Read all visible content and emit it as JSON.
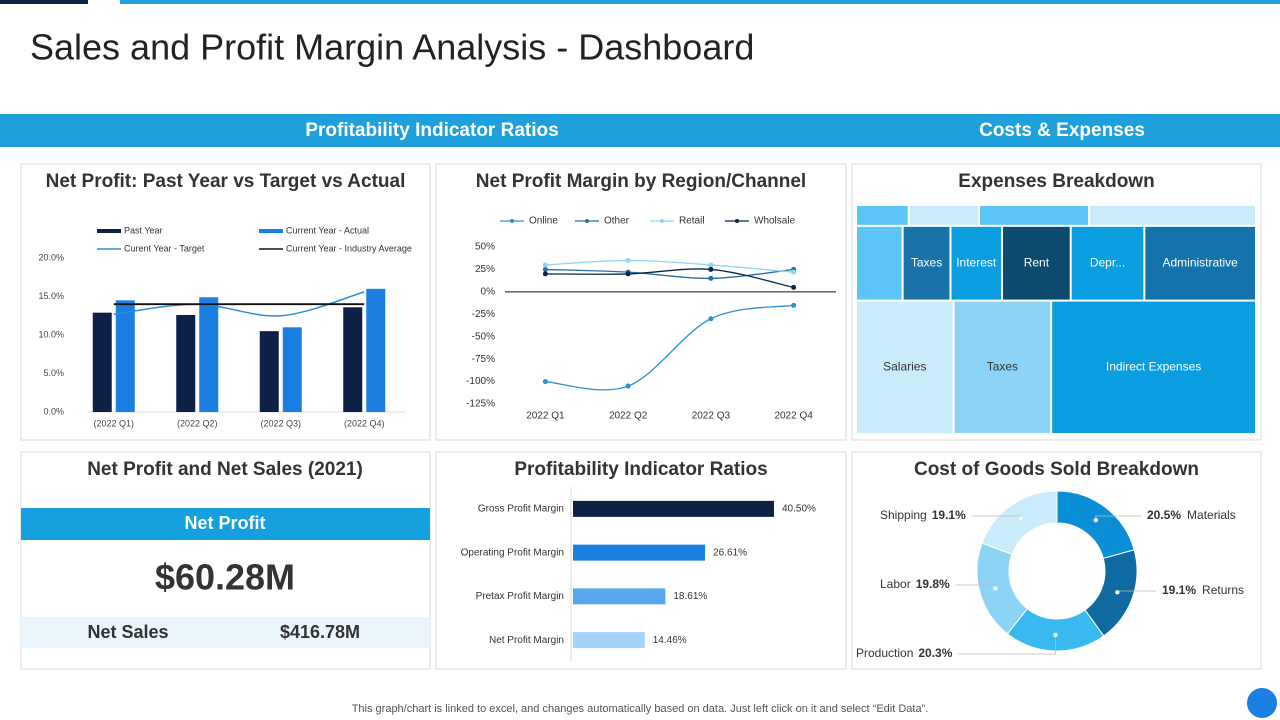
{
  "header": {
    "title": "Sales and Profit Margin Analysis - Dashboard",
    "sections": [
      "Profitability Indicator Ratios",
      "Costs & Expenses"
    ]
  },
  "chart_data": [
    {
      "type": "bar",
      "title": "Net Profit: Past Year vs Target vs Actual",
      "categories": [
        "(2022 Q1)",
        "(2022 Q2)",
        "(2022 Q3)",
        "(2022 Q4)"
      ],
      "series": [
        {
          "name": "Past Year",
          "kind": "bar",
          "color": "#0d2147",
          "values": [
            12.9,
            12.6,
            10.5,
            13.6
          ]
        },
        {
          "name": "Current Year - Actual",
          "kind": "bar",
          "color": "#1a7fe0",
          "values": [
            14.5,
            14.9,
            11.0,
            16.0
          ]
        },
        {
          "name": "Curent Year - Target",
          "kind": "line",
          "color": "#2a8fd6",
          "values": [
            12.7,
            14.0,
            12.5,
            15.6
          ]
        },
        {
          "name": "Current Year - Industry Average",
          "kind": "line",
          "color": "#111111",
          "values": [
            14,
            14,
            14,
            14
          ]
        }
      ],
      "ylim": [
        0,
        20
      ],
      "yticks": [
        {
          "value": 0,
          "label": "0.0%"
        },
        {
          "value": 5,
          "label": "5.0%"
        },
        {
          "value": 10,
          "label": "10.0%"
        },
        {
          "value": 15,
          "label": "15.0%"
        },
        {
          "value": 20,
          "label": "20.0%"
        }
      ]
    },
    {
      "type": "line",
      "title": "Net Profit Margin by Region/Channel",
      "categories": [
        "2022 Q1",
        "2022 Q2",
        "2022 Q3",
        "2022 Q4"
      ],
      "series": [
        {
          "name": "Online",
          "color": "#2b8fd0",
          "values": [
            -100,
            -105,
            -30,
            -15
          ]
        },
        {
          "name": "Other",
          "color": "#2a6f9e",
          "values": [
            25,
            22,
            15,
            25
          ]
        },
        {
          "name": "Retail",
          "color": "#8dd8f5",
          "values": [
            30,
            35,
            30,
            22
          ]
        },
        {
          "name": "Wholsale",
          "color": "#0b2a4a",
          "values": [
            20,
            20,
            25,
            5
          ]
        }
      ],
      "ylim": [
        -125,
        50
      ],
      "yticks": [
        {
          "value": 50,
          "label": "50%"
        },
        {
          "value": 25,
          "label": "25%"
        },
        {
          "value": 0,
          "label": "0%"
        },
        {
          "value": -25,
          "label": "-25%"
        },
        {
          "value": -50,
          "label": "-50%"
        },
        {
          "value": -75,
          "label": "-75%"
        },
        {
          "value": -100,
          "label": "-100%"
        },
        {
          "value": -125,
          "label": "-125%"
        }
      ]
    },
    {
      "type": "treemap",
      "title": "Expenses Breakdown",
      "categories": [
        "Indirect Expenses",
        "Taxes",
        "Salaries",
        "Administrative",
        "Depr...",
        "Rent",
        "Interest",
        "Taxes",
        null,
        null,
        null,
        null,
        null
      ],
      "values": [
        29.8,
        14.2,
        14.2,
        9.1,
        6.0,
        5.6,
        4.2,
        3.9,
        3.8,
        3.8,
        2.5,
        1.6,
        1.2
      ],
      "colors": [
        "#0a9ee0",
        "#8dd3f5",
        "#c9ecfb",
        "#1473ab",
        "#0a9ee0",
        "#0c4a6e",
        "#0a9ee0",
        "#1a73a8",
        "#5bc6f5",
        "#c9ecfb",
        "#5bc6f5",
        "#c9ecfb",
        "#5bc6f5"
      ]
    },
    {
      "type": "bar",
      "orientation": "horizontal",
      "title": "Profitability Indicator Ratios",
      "categories": [
        "Gross Profit Margin",
        "Operating Profit Margin",
        "Pretax Profit Margin",
        "Net Profit Margin"
      ],
      "values": [
        40.5,
        26.61,
        18.61,
        14.46
      ],
      "value_labels": [
        "40.50%",
        "26.61%",
        "18.61%",
        "14.46%"
      ],
      "colors": [
        "#0d2147",
        "#1a7fe0",
        "#5aa6ee",
        "#a8d1f7"
      ]
    },
    {
      "type": "pie",
      "donut": true,
      "title": "Cost of Goods Sold Breakdown",
      "categories": [
        "Materials",
        "Returns",
        "Production",
        "Labor",
        "Shipping"
      ],
      "values": [
        20.5,
        19.1,
        20.3,
        19.8,
        19.1
      ],
      "value_labels": [
        "20.5%",
        "19.1%",
        "20.3%",
        "19.8%",
        "19.1%"
      ],
      "colors": [
        "#0a8fd6",
        "#0e6aa0",
        "#3ab8f0",
        "#8dd3f5",
        "#c9ecfb"
      ]
    }
  ],
  "net_profit_card": {
    "title": "Net Profit and Net Sales (2021)",
    "header": "Net Profit",
    "value": "$60.28M",
    "sales_label": "Net Sales",
    "sales_value": "$416.78M"
  },
  "footer": "This graph/chart is linked to excel, and changes automatically based on data. Just left click on it and select “Edit Data”."
}
